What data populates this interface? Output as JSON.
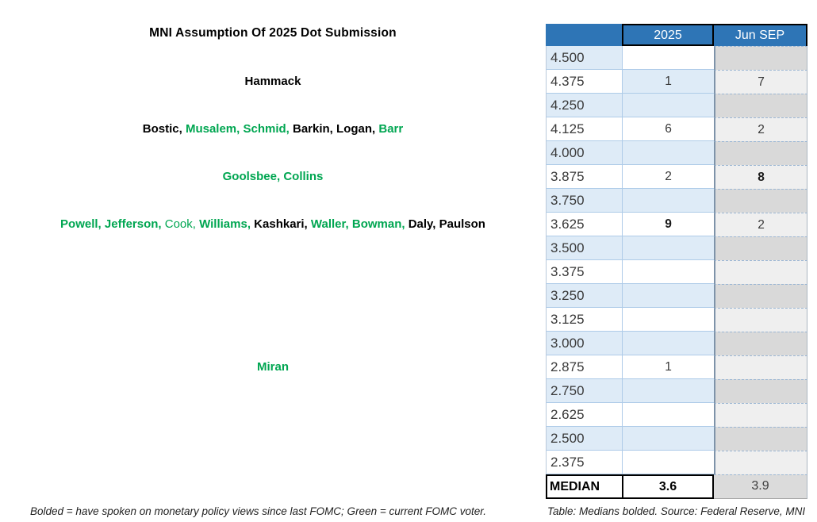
{
  "title": "MNI Assumption Of 2025 Dot Submission",
  "colors": {
    "header_blue": "#2E75B6",
    "row_stripe_blue": "#DEEBF7",
    "jun_sep_gray_dark": "#D9D9D9",
    "jun_sep_gray_light": "#EFEFEF",
    "voter_green": "#00A651",
    "nonvoter_black": "#000000"
  },
  "table": {
    "headers": {
      "rate": "",
      "col_2025": "2025",
      "col_jun_sep": "Jun SEP"
    },
    "rows": [
      {
        "rate": "4.500",
        "v2025": "",
        "vjun": "",
        "stripe": true,
        "stripe2025": false,
        "bold2025": false,
        "boldjun": false
      },
      {
        "rate": "4.375",
        "v2025": "1",
        "vjun": "7",
        "stripe": false,
        "stripe2025": true,
        "bold2025": false,
        "boldjun": false
      },
      {
        "rate": "4.250",
        "v2025": "",
        "vjun": "",
        "stripe": true,
        "stripe2025": true,
        "bold2025": false,
        "boldjun": false
      },
      {
        "rate": "4.125",
        "v2025": "6",
        "vjun": "2",
        "stripe": false,
        "stripe2025": false,
        "bold2025": false,
        "boldjun": false
      },
      {
        "rate": "4.000",
        "v2025": "",
        "vjun": "",
        "stripe": true,
        "stripe2025": true,
        "bold2025": false,
        "boldjun": false
      },
      {
        "rate": "3.875",
        "v2025": "2",
        "vjun": "8",
        "stripe": false,
        "stripe2025": false,
        "bold2025": false,
        "boldjun": true
      },
      {
        "rate": "3.750",
        "v2025": "",
        "vjun": "",
        "stripe": true,
        "stripe2025": true,
        "bold2025": false,
        "boldjun": false
      },
      {
        "rate": "3.625",
        "v2025": "9",
        "vjun": "2",
        "stripe": false,
        "stripe2025": false,
        "bold2025": true,
        "boldjun": false
      },
      {
        "rate": "3.500",
        "v2025": "",
        "vjun": "",
        "stripe": true,
        "stripe2025": true,
        "bold2025": false,
        "boldjun": false
      },
      {
        "rate": "3.375",
        "v2025": "",
        "vjun": "",
        "stripe": false,
        "stripe2025": false,
        "bold2025": false,
        "boldjun": false
      },
      {
        "rate": "3.250",
        "v2025": "",
        "vjun": "",
        "stripe": true,
        "stripe2025": true,
        "bold2025": false,
        "boldjun": false
      },
      {
        "rate": "3.125",
        "v2025": "",
        "vjun": "",
        "stripe": false,
        "stripe2025": false,
        "bold2025": false,
        "boldjun": false
      },
      {
        "rate": "3.000",
        "v2025": "",
        "vjun": "",
        "stripe": true,
        "stripe2025": true,
        "bold2025": false,
        "boldjun": false
      },
      {
        "rate": "2.875",
        "v2025": "1",
        "vjun": "",
        "stripe": false,
        "stripe2025": false,
        "bold2025": false,
        "boldjun": false
      },
      {
        "rate": "2.750",
        "v2025": "",
        "vjun": "",
        "stripe": true,
        "stripe2025": true,
        "bold2025": false,
        "boldjun": false
      },
      {
        "rate": "2.625",
        "v2025": "",
        "vjun": "",
        "stripe": false,
        "stripe2025": false,
        "bold2025": false,
        "boldjun": false
      },
      {
        "rate": "2.500",
        "v2025": "",
        "vjun": "",
        "stripe": true,
        "stripe2025": true,
        "bold2025": false,
        "boldjun": false
      },
      {
        "rate": "2.375",
        "v2025": "",
        "vjun": "",
        "stripe": false,
        "stripe2025": false,
        "bold2025": false,
        "boldjun": false
      }
    ],
    "median_row": {
      "label": "MEDIAN",
      "v2025": "3.6",
      "vjun": "3.9"
    }
  },
  "names_rows": [
    {
      "rate": "4.375",
      "names": [
        {
          "t": "Hammack",
          "green": false,
          "bold": true
        }
      ]
    },
    {
      "rate": "4.125",
      "names": [
        {
          "t": "Bostic",
          "green": false,
          "bold": true
        },
        {
          "t": "Musalem",
          "green": true,
          "bold": true
        },
        {
          "t": "Schmid",
          "green": true,
          "bold": true
        },
        {
          "t": "Barkin",
          "green": false,
          "bold": true
        },
        {
          "t": "Logan",
          "green": false,
          "bold": true
        },
        {
          "t": "Barr",
          "green": true,
          "bold": true
        }
      ]
    },
    {
      "rate": "3.875",
      "names": [
        {
          "t": "Goolsbee",
          "green": true,
          "bold": true
        },
        {
          "t": "Collins",
          "green": true,
          "bold": true
        }
      ]
    },
    {
      "rate": "3.625",
      "names": [
        {
          "t": "Powell",
          "green": true,
          "bold": true
        },
        {
          "t": "Jefferson",
          "green": true,
          "bold": true
        },
        {
          "t": "Cook",
          "green": true,
          "bold": false
        },
        {
          "t": "Williams",
          "green": true,
          "bold": true
        },
        {
          "t": "Kashkari",
          "green": false,
          "bold": true
        },
        {
          "t": "Waller",
          "green": true,
          "bold": true
        },
        {
          "t": "Bowman",
          "green": true,
          "bold": true
        },
        {
          "t": "Daly",
          "green": false,
          "bold": true
        },
        {
          "t": "Paulson",
          "green": false,
          "bold": true
        }
      ]
    },
    {
      "rate": "2.875",
      "names": [
        {
          "t": "Miran",
          "green": true,
          "bold": true
        }
      ]
    }
  ],
  "footnote": {
    "left": "Bolded = have spoken on monetary policy views since last FOMC; Green = current FOMC voter.",
    "right": "Table: Medians bolded. Source: Federal Reserve, MNI"
  },
  "chart_data": {
    "type": "table",
    "title": "MNI Assumption Of 2025 Dot Submission",
    "columns": [
      "Rate",
      "2025",
      "Jun SEP"
    ],
    "rates": [
      4.5,
      4.375,
      4.25,
      4.125,
      4.0,
      3.875,
      3.75,
      3.625,
      3.5,
      3.375,
      3.25,
      3.125,
      3.0,
      2.875,
      2.75,
      2.625,
      2.5,
      2.375
    ],
    "series": [
      {
        "name": "2025",
        "values": [
          null,
          1,
          null,
          6,
          null,
          2,
          null,
          9,
          null,
          null,
          null,
          null,
          null,
          1,
          null,
          null,
          null,
          null
        ]
      },
      {
        "name": "Jun SEP",
        "values": [
          null,
          7,
          null,
          2,
          null,
          8,
          null,
          2,
          null,
          null,
          null,
          null,
          null,
          null,
          null,
          null,
          null,
          null
        ]
      }
    ],
    "medians": {
      "2025": 3.6,
      "Jun SEP": 3.9
    },
    "bolded_cells": [
      {
        "column": "2025",
        "rate": 3.625
      },
      {
        "column": "Jun SEP",
        "rate": 3.875
      }
    ],
    "submitters_by_rate": {
      "4.375": [
        "Hammack"
      ],
      "4.125": [
        "Bostic",
        "Musalem",
        "Schmid",
        "Barkin",
        "Logan",
        "Barr"
      ],
      "3.875": [
        "Goolsbee",
        "Collins"
      ],
      "3.625": [
        "Powell",
        "Jefferson",
        "Cook",
        "Williams",
        "Kashkari",
        "Waller",
        "Bowman",
        "Daly",
        "Paulson"
      ],
      "2.875": [
        "Miran"
      ]
    }
  }
}
